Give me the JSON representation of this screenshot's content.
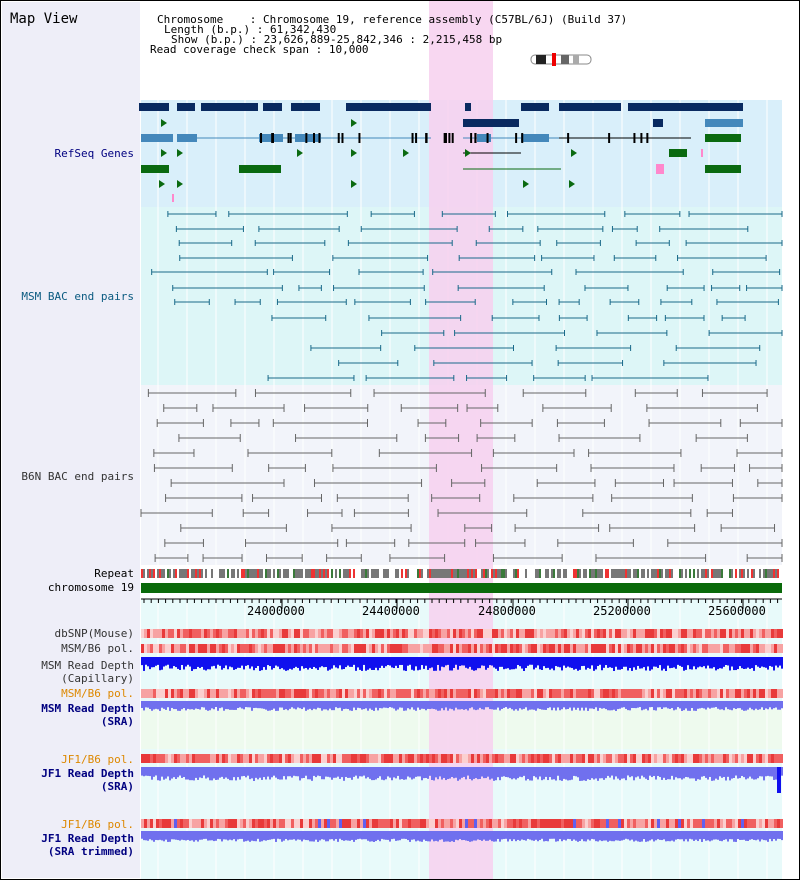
{
  "title": "Map View",
  "info": {
    "chromosome_label": "Chromosome",
    "chromosome_value": ": Chromosome 19, reference assembly (C57BL/6J) (Build 37)",
    "length_label": "Length (b.p.)",
    "length_value": ": 61,342,430",
    "show_label": "Show (b.p.)",
    "show_value": ": 23,626,889-25,842,346 : 2,215,458 bp",
    "coverage_label": "Read coverage check span",
    "coverage_value": ": 10,000"
  },
  "tracks": {
    "refseq": "RefSeq Genes",
    "msm_bac": "MSM BAC end pairs",
    "b6n_bac": "B6N BAC end pairs",
    "repeat": "Repeat",
    "chromosome": "chromosome 19",
    "dbsnp": "dbSNP(Mouse)",
    "msm_b6_pol": "MSM/B6 pol.",
    "msm_read_depth_cap": "MSM Read Depth",
    "msm_read_depth_cap_sub": "(Capillary)",
    "msm_b6_pol2": "MSM/B6 pol.",
    "msm_read_depth_sra": "MSM Read Depth",
    "msm_read_depth_sra_sub": "(SRA)",
    "jf1_b6_pol": "JF1/B6 pol.",
    "jf1_read_depth_sra": "JF1 Read Depth",
    "jf1_read_depth_sra_sub": "(SRA)",
    "jf1_b6_pol2": "JF1/B6 pol.",
    "jf1_read_depth_trim": "JF1 Read Depth",
    "jf1_read_depth_trim_sub": "(SRA trimmed)"
  },
  "axis": {
    "ticks": [
      "24000000",
      "24400000",
      "24800000",
      "25200000",
      "25600000"
    ]
  },
  "colors": {
    "refseq_dark": "#0a2a60",
    "refseq_mid": "#4488bb",
    "refseq_green": "#0a6a10",
    "msm_bac": "#1a6a8a",
    "b6n_bac": "#666666",
    "highlight": "#f7d0ef",
    "snp_red": "#ee3333",
    "depth_blue": "#1010ee",
    "depth_light": "#7070ee",
    "label_navy": "#000080",
    "label_teal": "#0a5a80",
    "label_orange": "#dd8800",
    "label_gray": "#333333"
  }
}
